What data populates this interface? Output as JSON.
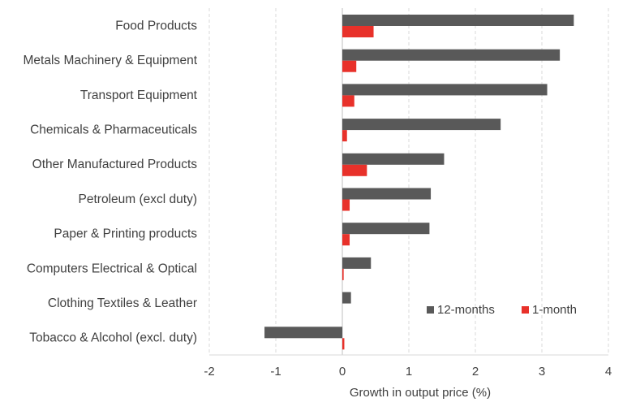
{
  "chart_data": {
    "type": "bar",
    "orientation": "horizontal",
    "categories": [
      "Food Products",
      "Metals Machinery & Equipment",
      "Transport Equipment",
      "Chemicals & Pharmaceuticals",
      "Other Manufactured Products",
      "Petroleum (excl duty)",
      "Paper & Printing products",
      "Computers Electrical & Optical",
      "Clothing Textiles & Leather",
      "Tobacco & Alcohol (excl. duty)"
    ],
    "series": [
      {
        "name": "12-months",
        "color": "#595959",
        "values": [
          3.48,
          3.27,
          3.08,
          2.38,
          1.53,
          1.33,
          1.31,
          0.43,
          0.13,
          -1.17
        ]
      },
      {
        "name": "1-month",
        "color": "#e8312a",
        "values": [
          0.47,
          0.21,
          0.18,
          0.07,
          0.37,
          0.11,
          0.11,
          0.02,
          0.0,
          0.03
        ]
      }
    ],
    "xlabel": "Growth in output price (%)",
    "ylabel": "",
    "xlim": [
      -2,
      4
    ],
    "xticks": [
      "-2",
      "-1",
      "0",
      "1",
      "2",
      "3",
      "4"
    ],
    "grid": "vertical dashed",
    "legend_position": "bottom-right"
  }
}
